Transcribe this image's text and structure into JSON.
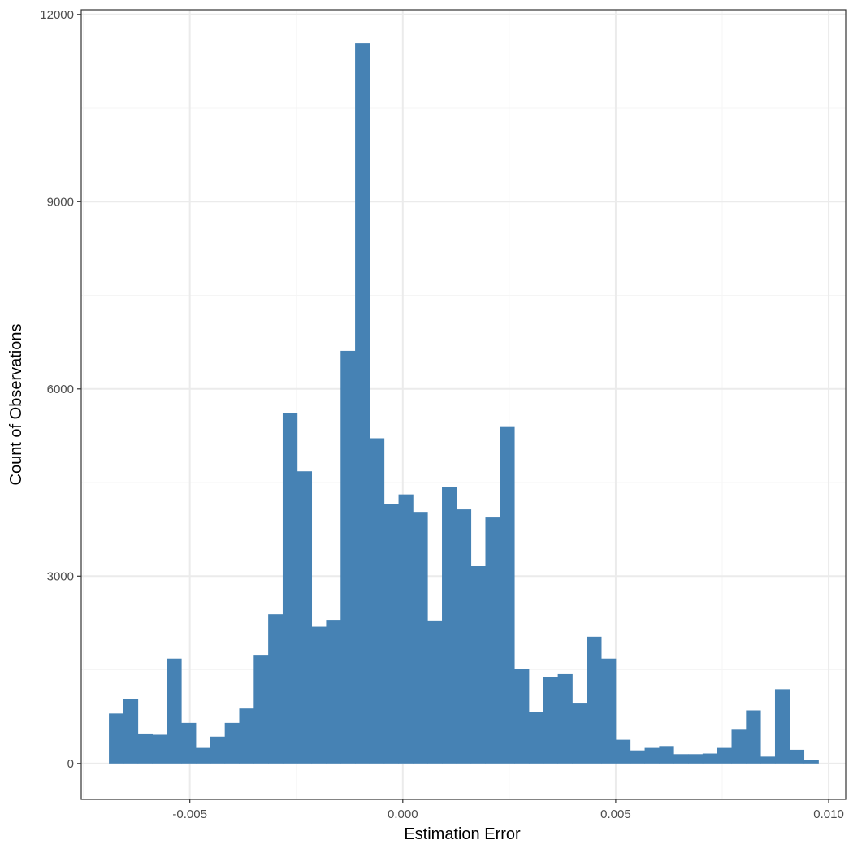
{
  "chart_data": {
    "type": "bar",
    "title": "",
    "xlabel": "Estimation Error",
    "ylabel": "Count of Observations",
    "xlim": [
      -0.00755,
      0.0104
    ],
    "ylim": [
      -575,
      12075
    ],
    "grid": true,
    "legend": "none",
    "bar_color": "#4682b4",
    "panel_border_color": "#333333",
    "grid_major_color": "#ebebeb",
    "grid_minor_color": "#f5f5f5",
    "x_ticks": [
      -0.005,
      0.0,
      0.005,
      0.01
    ],
    "x_tick_labels": [
      "-0.005",
      "0.000",
      "0.005",
      "0.010"
    ],
    "x_minor_ticks": [
      -0.0075,
      -0.0025,
      0.0025,
      0.0075
    ],
    "y_ticks": [
      0,
      3000,
      6000,
      9000,
      12000
    ],
    "y_tick_labels": [
      "0",
      "3000",
      "6000",
      "9000",
      "12000"
    ],
    "y_minor_ticks": [
      1500,
      4500,
      7500,
      10500
    ],
    "bin_width": 0.00034,
    "bin_start": -0.0069,
    "values": [
      800,
      1030,
      480,
      460,
      1680,
      650,
      250,
      430,
      650,
      880,
      1740,
      2390,
      5610,
      4680,
      2190,
      2300,
      6610,
      11540,
      5210,
      4150,
      4310,
      4030,
      2290,
      4430,
      4070,
      3160,
      3940,
      5390,
      1520,
      820,
      1380,
      1430,
      960,
      2030,
      1680,
      380,
      210,
      250,
      280,
      150,
      150,
      160,
      250,
      540,
      850,
      110,
      1190,
      220,
      60
    ]
  }
}
